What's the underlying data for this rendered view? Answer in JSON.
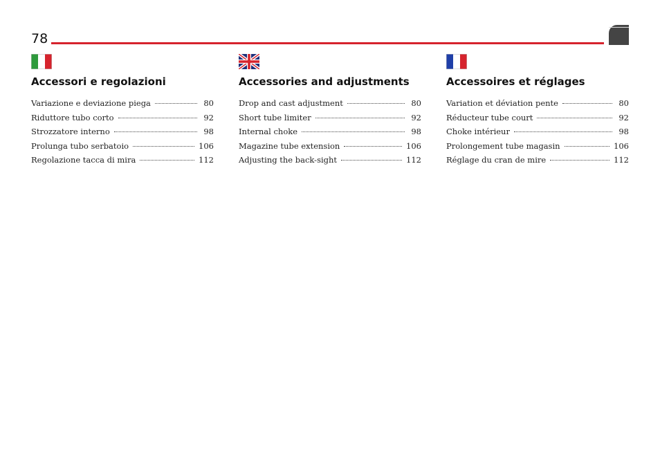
{
  "page": {
    "number": "78"
  },
  "colors": {
    "accent": "#d6232d",
    "tab": "#444444"
  },
  "columns": [
    {
      "lang": "it",
      "flag_icon": "italy-flag-icon",
      "title": "Accessori e regolazioni",
      "items": [
        {
          "label": "Variazione e deviazione piega",
          "page": "80"
        },
        {
          "label": "Riduttore tubo corto",
          "page": "92"
        },
        {
          "label": "Strozzatore interno",
          "page": "98"
        },
        {
          "label": "Prolunga tubo serbatoio",
          "page": "106"
        },
        {
          "label": "Regolazione tacca di mira",
          "page": "112"
        }
      ]
    },
    {
      "lang": "en",
      "flag_icon": "uk-flag-icon",
      "title": "Accessories and adjustments",
      "items": [
        {
          "label": "Drop and cast adjustment",
          "page": "80"
        },
        {
          "label": "Short tube limiter",
          "page": "92"
        },
        {
          "label": "Internal choke",
          "page": "98"
        },
        {
          "label": "Magazine tube extension",
          "page": "106"
        },
        {
          "label": "Adjusting the back-sight",
          "page": "112"
        }
      ]
    },
    {
      "lang": "fr",
      "flag_icon": "france-flag-icon",
      "title": "Accessoires et réglages",
      "items": [
        {
          "label": "Variation et déviation pente",
          "page": "80"
        },
        {
          "label": "Réducteur tube court",
          "page": "92"
        },
        {
          "label": "Choke intérieur",
          "page": "98"
        },
        {
          "label": "Prolongement tube magasin",
          "page": "106"
        },
        {
          "label": "Réglage du cran de mire",
          "page": "112"
        }
      ]
    }
  ]
}
